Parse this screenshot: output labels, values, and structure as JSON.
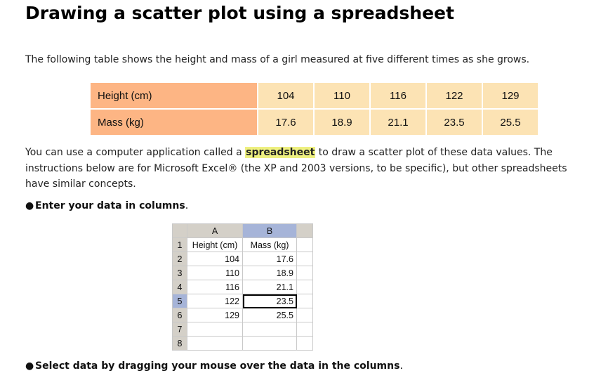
{
  "title": "Drawing a scatter plot using a spreadsheet",
  "intro": "The following table shows the height and mass of a girl measured at five different times as she grows.",
  "table": {
    "rows": [
      {
        "label": "Height (cm)",
        "values": [
          "104",
          "110",
          "116",
          "122",
          "129"
        ]
      },
      {
        "label": "Mass (kg)",
        "values": [
          "17.6",
          "18.9",
          "21.1",
          "23.5",
          "25.5"
        ]
      }
    ]
  },
  "paragraph": {
    "before": "You can use a computer application called a ",
    "highlight": "spreadsheet",
    "after": " to draw a scatter plot of these data values. The instructions below are for Microsoft Excel® (the XP and 2003 versions, to be specific), but other spreadsheets have similar concepts."
  },
  "bullets": [
    {
      "bold": "Enter your data in columns",
      "tail": "."
    },
    {
      "bold": "Select data by dragging your mouse over the data in the columns",
      "tail": "."
    }
  ],
  "spreadsheet": {
    "col_headers": [
      "A",
      "B"
    ],
    "row_numbers": [
      "1",
      "2",
      "3",
      "4",
      "5",
      "6",
      "7",
      "8"
    ],
    "header_row": [
      "Height (cm)",
      "Mass (kg)"
    ],
    "rows": [
      [
        "104",
        "17.6"
      ],
      [
        "110",
        "18.9"
      ],
      [
        "116",
        "21.1"
      ],
      [
        "122",
        "23.5"
      ],
      [
        "129",
        "25.5"
      ]
    ],
    "selected_row": "5",
    "selected_column": "B",
    "highlight_color": "#a6b4d8"
  },
  "colors": {
    "header_cell": "#fdb584",
    "value_cell": "#fce3b4",
    "keyword_highlight": "#eef080"
  }
}
